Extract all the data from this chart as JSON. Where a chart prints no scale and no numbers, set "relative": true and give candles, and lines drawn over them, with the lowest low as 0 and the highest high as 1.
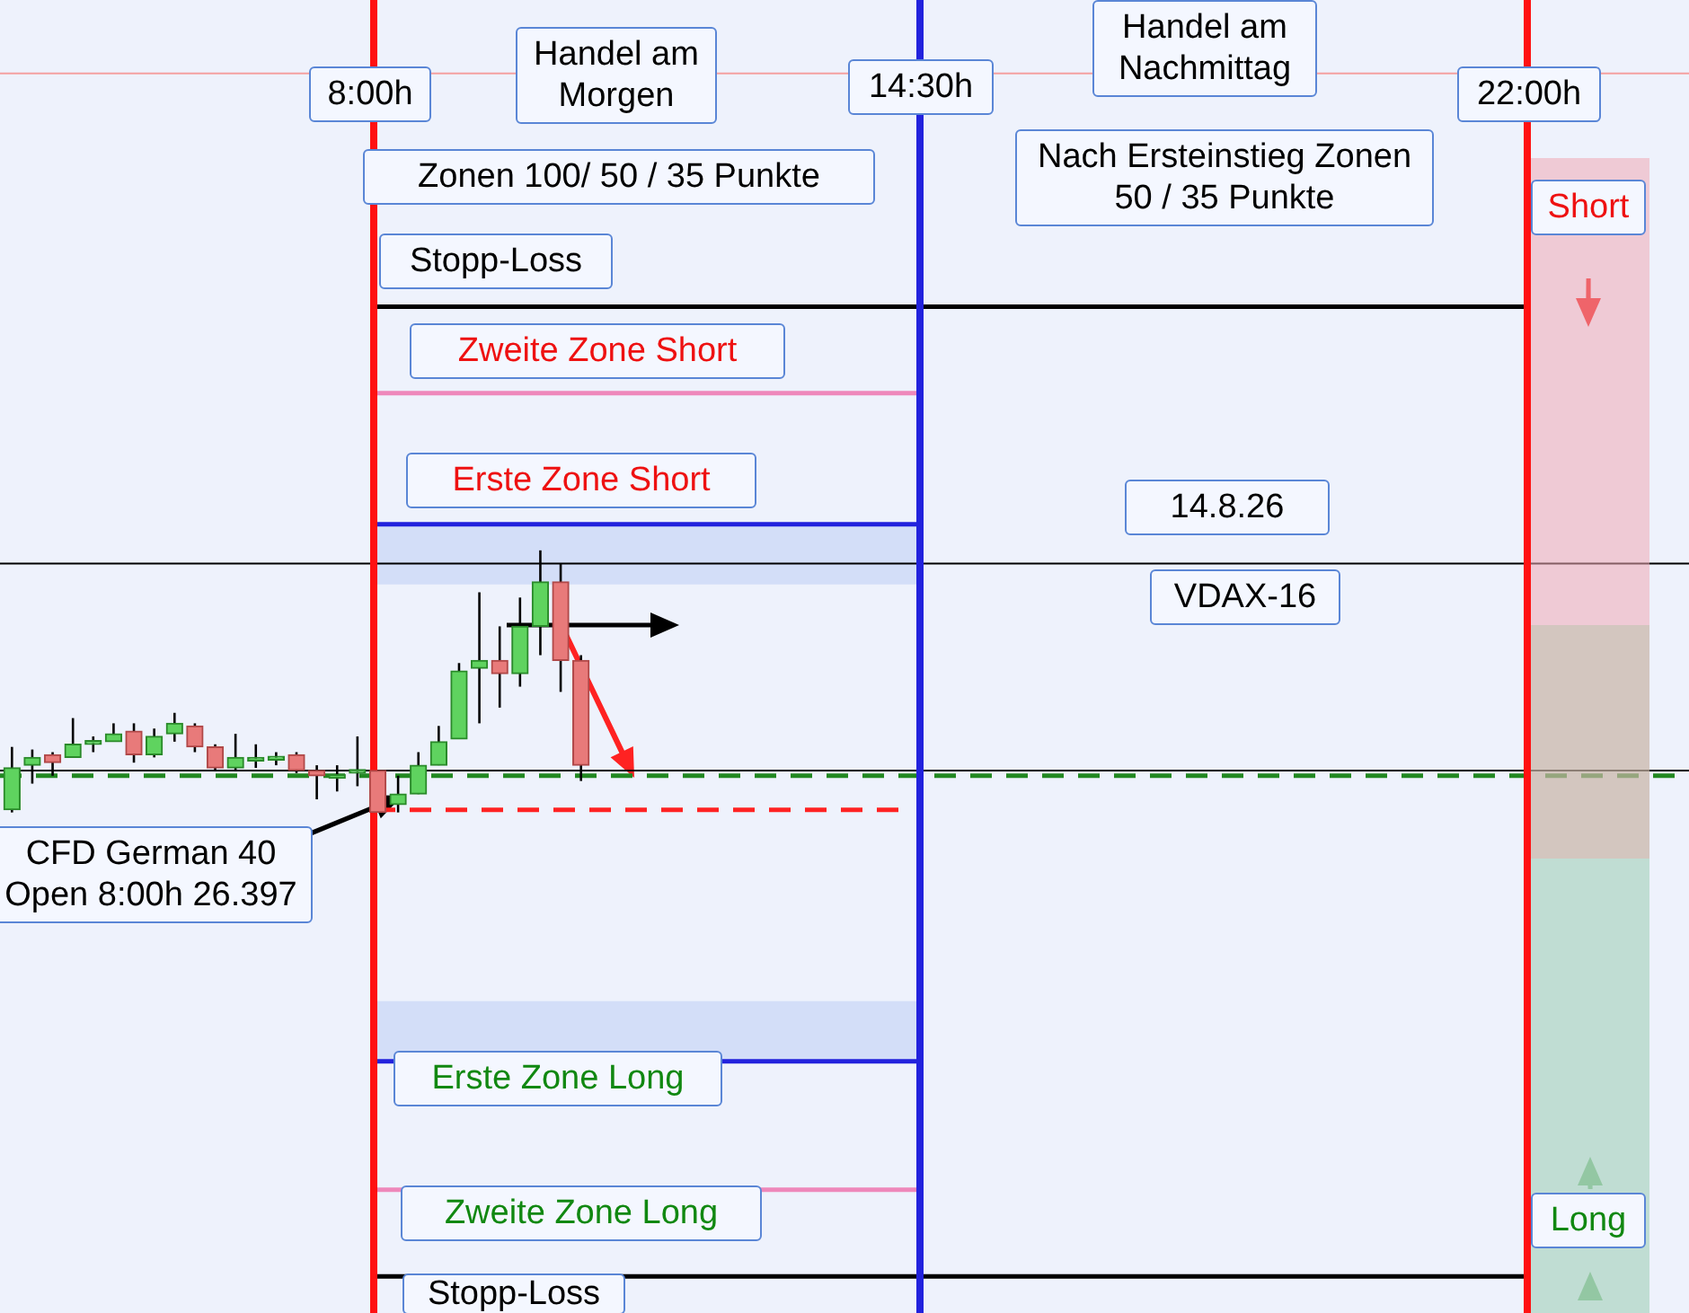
{
  "chart_data": {
    "type": "candlestick",
    "relative": true,
    "tick_labels": false,
    "categories": [
      null,
      null,
      null,
      null,
      null,
      null,
      null,
      null,
      null,
      null,
      null,
      null,
      null,
      null,
      null,
      null,
      null,
      null,
      null,
      null,
      null,
      null,
      null,
      null,
      null,
      null,
      null,
      null,
      null
    ],
    "ohlc": [
      [
        0.01,
        0.25,
        0,
        0.17
      ],
      [
        0.18,
        0.24,
        0.11,
        0.21
      ],
      [
        0.22,
        0.23,
        0.14,
        0.19
      ],
      [
        0.21,
        0.36,
        0.21,
        0.26
      ],
      [
        0.26,
        0.29,
        0.23,
        0.27
      ],
      [
        0.27,
        0.34,
        0.27,
        0.3
      ],
      [
        0.31,
        0.34,
        0.19,
        0.22
      ],
      [
        0.22,
        0.32,
        0.21,
        0.29
      ],
      [
        0.3,
        0.38,
        0.27,
        0.34
      ],
      [
        0.33,
        0.34,
        0.23,
        0.25
      ],
      [
        0.25,
        0.26,
        0.16,
        0.17
      ],
      [
        0.17,
        0.3,
        0.16,
        0.21
      ],
      [
        0.21,
        0.26,
        0.17,
        0.21
      ],
      [
        0.2,
        0.23,
        0.18,
        0.21
      ],
      [
        0.22,
        0.23,
        0.15,
        0.16
      ],
      [
        0.16,
        0.18,
        0.05,
        0.14
      ],
      [
        0.13,
        0.18,
        0.08,
        0.14
      ],
      [
        0.15,
        0.29,
        0.1,
        0.16
      ],
      [
        0.16,
        0.16,
        0,
        0
      ],
      [
        0.03,
        0.14,
        0,
        0.07
      ],
      [
        0.07,
        0.23,
        0.07,
        0.18
      ],
      [
        0.18,
        0.33,
        0.18,
        0.27
      ],
      [
        0.28,
        0.57,
        0.28,
        0.54
      ],
      [
        0.55,
        0.84,
        0.34,
        0.58
      ],
      [
        0.58,
        0.71,
        0.4,
        0.53
      ],
      [
        0.53,
        0.82,
        0.48,
        0.71
      ],
      [
        0.71,
        1,
        0.6,
        0.88
      ],
      [
        0.88,
        0.95,
        0.46,
        0.58
      ],
      [
        0.58,
        0.6,
        0.12,
        0.18
      ]
    ],
    "ref_lines": [
      {
        "axis": "y",
        "value": 1.93,
        "label": "Stopp-Loss",
        "color": "#000000"
      },
      {
        "axis": "y",
        "value": 1.6,
        "label": "Zweite Zone Short",
        "color": "#ee88bb"
      },
      {
        "axis": "y",
        "value": 1.1,
        "label": "Erste Zone Short",
        "color": "#2222dd"
      },
      {
        "axis": "y",
        "value": -0.95,
        "label": "Erste Zone Long",
        "color": "#2222dd"
      },
      {
        "axis": "y",
        "value": -1.44,
        "label": "Zweite Zone Long",
        "color": "#ee88bb"
      },
      {
        "axis": "y",
        "value": -1.77,
        "label": "Stopp-Loss",
        "color": "#000000"
      },
      {
        "axis": "y",
        "value": 0.14,
        "color": "#228822",
        "line_style": "dashed"
      },
      {
        "axis": "y",
        "value": 0.95,
        "color": "#000000"
      },
      {
        "axis": "y",
        "value": 0.16,
        "color": "#000000"
      },
      {
        "axis": "y",
        "value": 2.82,
        "color": "#f4a0a0"
      },
      {
        "axis": "y",
        "value": 0.01,
        "color": "#ff2222",
        "line_style": "dashed"
      }
    ],
    "bands": [
      {
        "axis": "y",
        "from": 0.87,
        "to": 1.1,
        "color": "#d3def8"
      },
      {
        "axis": "y",
        "from": -0.95,
        "to": -0.72,
        "color": "#d3def8"
      }
    ],
    "annotations": [
      "8:00h",
      "14:30h",
      "22:00h",
      "Handel am Morgen",
      "Handel am Nachmittag",
      "Zonen 100/ 50 / 35 Punkte",
      "Nach Ersteinstieg Zonen 50 / 35 Punkte",
      "14.8.26",
      "VDAX-16",
      "CFD German 40 Open  8:00h 26.397",
      "Short",
      "Long"
    ]
  }
}
